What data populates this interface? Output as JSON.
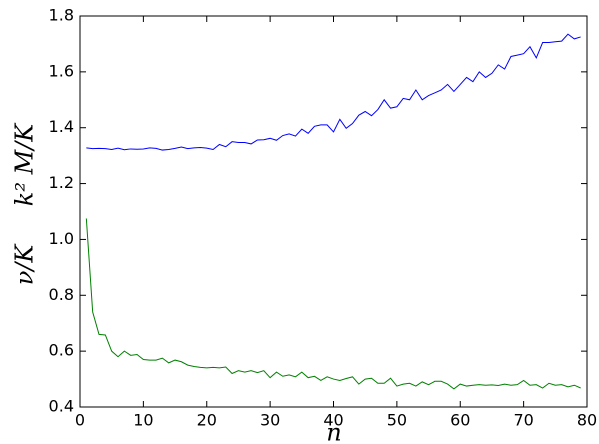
{
  "chart_data": {
    "type": "line",
    "xlabel": "n",
    "ylabels": [
      "ν/K",
      "k² M/K"
    ],
    "x": [
      1,
      2,
      3,
      4,
      5,
      6,
      7,
      8,
      9,
      10,
      11,
      12,
      13,
      14,
      15,
      16,
      17,
      18,
      19,
      20,
      21,
      22,
      23,
      24,
      25,
      26,
      27,
      28,
      29,
      30,
      31,
      32,
      33,
      34,
      35,
      36,
      37,
      38,
      39,
      40,
      41,
      42,
      43,
      44,
      45,
      46,
      47,
      48,
      49,
      50,
      51,
      52,
      53,
      54,
      55,
      56,
      57,
      58,
      59,
      60,
      61,
      62,
      63,
      64,
      65,
      66,
      67,
      68,
      69,
      70,
      71,
      72,
      73,
      74,
      75,
      76,
      77,
      78,
      79
    ],
    "series": [
      {
        "color": "#0000ff",
        "values": [
          1.328,
          1.325,
          1.326,
          1.325,
          1.322,
          1.327,
          1.321,
          1.324,
          1.323,
          1.324,
          1.328,
          1.326,
          1.32,
          1.322,
          1.326,
          1.331,
          1.325,
          1.328,
          1.329,
          1.327,
          1.322,
          1.34,
          1.332,
          1.35,
          1.347,
          1.347,
          1.342,
          1.356,
          1.357,
          1.362,
          1.355,
          1.372,
          1.378,
          1.37,
          1.395,
          1.38,
          1.405,
          1.41,
          1.41,
          1.385,
          1.43,
          1.398,
          1.415,
          1.445,
          1.458,
          1.443,
          1.465,
          1.5,
          1.47,
          1.475,
          1.505,
          1.5,
          1.535,
          1.5,
          1.515,
          1.525,
          1.535,
          1.555,
          1.53,
          1.555,
          1.58,
          1.565,
          1.6,
          1.58,
          1.595,
          1.625,
          1.61,
          1.655,
          1.66,
          1.665,
          1.69,
          1.65,
          1.705,
          1.705,
          1.708,
          1.71,
          1.735,
          1.718,
          1.725
        ]
      },
      {
        "color": "#008000",
        "values": [
          1.075,
          0.74,
          0.66,
          0.658,
          0.6,
          0.58,
          0.6,
          0.585,
          0.588,
          0.57,
          0.568,
          0.568,
          0.575,
          0.558,
          0.568,
          0.562,
          0.55,
          0.545,
          0.542,
          0.54,
          0.542,
          0.54,
          0.543,
          0.52,
          0.53,
          0.525,
          0.53,
          0.523,
          0.53,
          0.505,
          0.525,
          0.51,
          0.515,
          0.508,
          0.525,
          0.505,
          0.51,
          0.495,
          0.508,
          0.5,
          0.495,
          0.502,
          0.508,
          0.482,
          0.5,
          0.503,
          0.485,
          0.485,
          0.503,
          0.475,
          0.482,
          0.485,
          0.475,
          0.49,
          0.48,
          0.492,
          0.492,
          0.482,
          0.465,
          0.482,
          0.475,
          0.478,
          0.48,
          0.478,
          0.479,
          0.477,
          0.482,
          0.478,
          0.48,
          0.495,
          0.478,
          0.48,
          0.468,
          0.485,
          0.478,
          0.48,
          0.472,
          0.478,
          0.468
        ]
      }
    ],
    "xlim": [
      0,
      80
    ],
    "xticks": [
      0,
      10,
      20,
      30,
      40,
      50,
      60,
      70,
      80
    ],
    "ylim": [
      0.4,
      1.8
    ],
    "yticks": [
      0.4,
      0.6,
      0.8,
      {
        "value": 1,
        "label": "1.0"
      },
      1.2,
      1.4,
      1.6,
      1.8
    ],
    "grid": false
  }
}
